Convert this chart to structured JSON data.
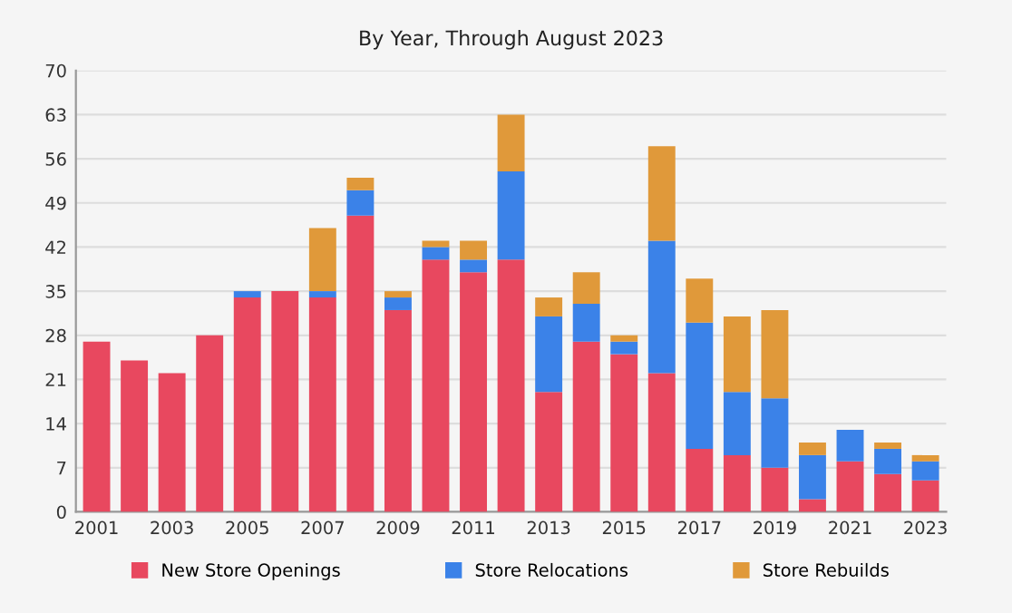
{
  "chart_data": {
    "type": "bar",
    "title": "By Year, Through August 2023",
    "stacked": true,
    "categories": [
      "2001",
      null,
      "2003",
      null,
      "2005",
      null,
      "2007",
      null,
      "2009",
      null,
      "2011",
      null,
      "2013",
      null,
      "2015",
      null,
      "2017",
      null,
      "2019",
      null,
      "2021",
      null,
      "2023"
    ],
    "series": [
      {
        "name": "New Store Openings",
        "color": "#e8485f",
        "values": [
          27,
          24,
          22,
          28,
          34,
          35,
          34,
          47,
          32,
          40,
          38,
          40,
          19,
          27,
          25,
          22,
          10,
          9,
          7,
          2,
          8,
          6,
          5
        ]
      },
      {
        "name": "Store Relocations",
        "color": "#3b82e8",
        "values": [
          0,
          0,
          0,
          0,
          1,
          0,
          1,
          4,
          2,
          2,
          2,
          14,
          12,
          6,
          2,
          21,
          20,
          10,
          11,
          7,
          5,
          4,
          3
        ]
      },
      {
        "name": "Store Rebuilds",
        "color": "#e0993a",
        "values": [
          0,
          0,
          0,
          0,
          0,
          0,
          10,
          2,
          1,
          1,
          3,
          9,
          3,
          5,
          1,
          15,
          7,
          12,
          14,
          2,
          0,
          1,
          1
        ]
      }
    ],
    "ylim": [
      0,
      70
    ],
    "yticks": [
      0,
      7,
      14,
      21,
      28,
      35,
      42,
      49,
      56,
      63,
      70
    ],
    "grid": "y",
    "legend": "bottom"
  }
}
